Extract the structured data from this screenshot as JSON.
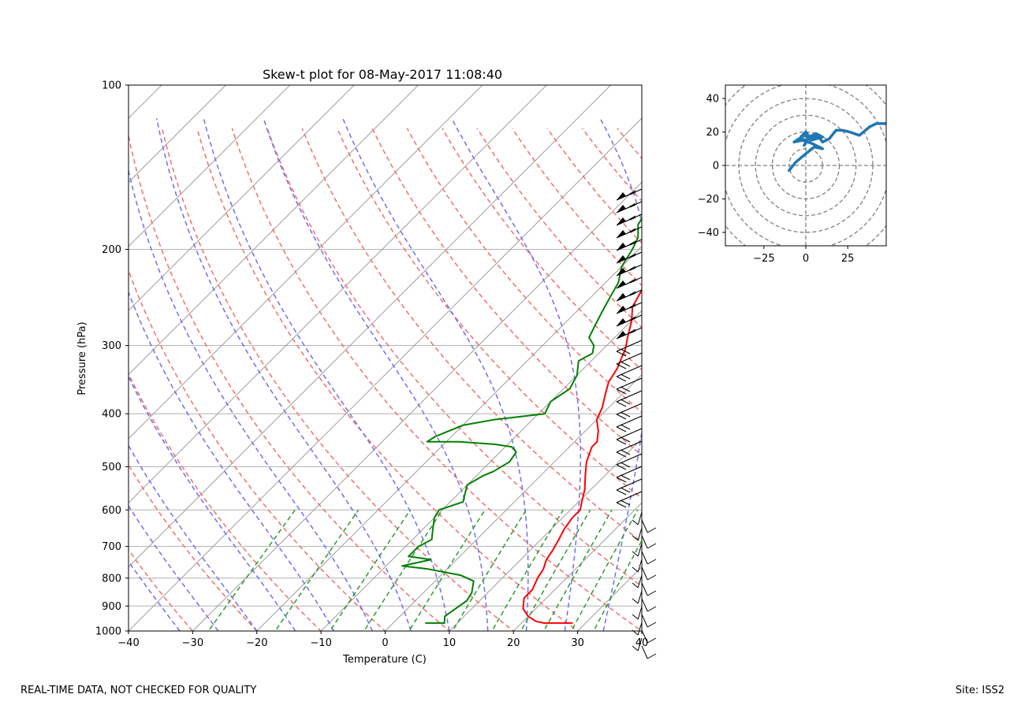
{
  "footer": {
    "left": "REAL-TIME DATA, NOT CHECKED FOR QUALITY",
    "right": "Site: ISS2"
  },
  "chart_data": [
    {
      "type": "line",
      "subtype": "skew-t log-p",
      "title": "Skew-t plot for 08-May-2017 11:08:40",
      "xlabel": "Temperature (C)",
      "ylabel": "Pressure (hPa)",
      "xlim": [
        -40,
        40
      ],
      "ylim": [
        1000,
        100
      ],
      "yscale": "log",
      "xticks": [
        -40,
        -30,
        -20,
        -10,
        0,
        10,
        20,
        30,
        40
      ],
      "yticks": [
        100,
        200,
        300,
        400,
        500,
        600,
        700,
        800,
        900,
        1000
      ],
      "grid": true,
      "reference_lines": {
        "isotherms": {
          "color": "#a0a0a0",
          "style": "solid"
        },
        "dry_adiabats": {
          "color": "#f07070",
          "style": "dashed"
        },
        "moist_adiabats": {
          "color": "#6f6ff0",
          "style": "dashed"
        },
        "mixing_ratio": {
          "color": "#2e9a2e",
          "style": "dashed"
        }
      },
      "series": [
        {
          "role": "temperature",
          "color": "#ff0000",
          "points": [
            [
              28,
              967
            ],
            [
              23.5,
              967
            ],
            [
              22,
              960
            ],
            [
              20,
              940
            ],
            [
              18,
              910
            ],
            [
              16.5,
              870
            ],
            [
              16.5,
              840
            ],
            [
              15.5,
              800
            ],
            [
              15,
              770
            ],
            [
              14,
              740
            ],
            [
              13.5,
              710
            ],
            [
              12.8,
              680
            ],
            [
              12,
              650
            ],
            [
              11.5,
              620
            ],
            [
              11.5,
              600
            ],
            [
              10.5,
              580
            ],
            [
              9,
              550
            ],
            [
              7,
              520
            ],
            [
              5,
              490
            ],
            [
              3.5,
              460
            ],
            [
              3.5,
              450
            ],
            [
              2,
              430
            ],
            [
              0,
              410
            ],
            [
              -1,
              390
            ],
            [
              -2.5,
              370
            ],
            [
              -4,
              350
            ],
            [
              -4.8,
              330
            ],
            [
              -5.5,
              320
            ],
            [
              -6.5,
              305
            ],
            [
              -8,
              290
            ],
            [
              -10,
              270
            ],
            [
              -12,
              255
            ],
            [
              -13,
              240
            ],
            [
              -14,
              225
            ],
            [
              -15,
              210
            ],
            [
              -16,
              200
            ],
            [
              -16,
              190
            ],
            [
              -15,
              175
            ],
            [
              -15,
              165
            ],
            [
              -10.5,
              150
            ],
            [
              -7,
              140
            ],
            [
              -5,
              133
            ],
            [
              -3,
              128
            ],
            [
              -1.5,
              125
            ]
          ]
        },
        {
          "role": "dewpoint",
          "color": "#008000",
          "points": [
            [
              5,
              967
            ],
            [
              8,
              967
            ],
            [
              7,
              940
            ],
            [
              7.5,
              910
            ],
            [
              8,
              880
            ],
            [
              7.5,
              850
            ],
            [
              6,
              810
            ],
            [
              3,
              790
            ],
            [
              -3,
              770
            ],
            [
              -7.5,
              760
            ],
            [
              -4,
              740
            ],
            [
              -8,
              730
            ],
            [
              -8,
              700
            ],
            [
              -7,
              680
            ],
            [
              -8,
              660
            ],
            [
              -9,
              640
            ],
            [
              -10,
              620
            ],
            [
              -10.5,
              600
            ],
            [
              -8,
              580
            ],
            [
              -9,
              560
            ],
            [
              -10,
              540
            ],
            [
              -9,
              520
            ],
            [
              -8,
              510
            ],
            [
              -7,
              490
            ],
            [
              -7.5,
              470
            ],
            [
              -9,
              460
            ],
            [
              -12,
              455
            ],
            [
              -18,
              450
            ],
            [
              -23,
              450
            ],
            [
              -22.5,
              440
            ],
            [
              -20,
              420
            ],
            [
              -16,
              410
            ],
            [
              -9,
              400
            ],
            [
              -10,
              380
            ],
            [
              -9,
              360
            ],
            [
              -10,
              340
            ],
            [
              -12,
              320
            ],
            [
              -11,
              310
            ],
            [
              -12,
              300
            ],
            [
              -14,
              290
            ],
            [
              -15,
              275
            ],
            [
              -16,
              260
            ],
            [
              -17,
              245
            ],
            [
              -18,
              230
            ],
            [
              -20,
              215
            ],
            [
              -21,
              200
            ],
            [
              -22,
              190
            ],
            [
              -24,
              180
            ],
            [
              -25.5,
              160
            ],
            [
              -28,
              145
            ],
            [
              -31,
              135
            ],
            [
              -30.5,
              130
            ],
            [
              -30,
              125
            ]
          ]
        }
      ],
      "wind_barbs": true
    },
    {
      "type": "line",
      "subtype": "hodograph",
      "xlim": [
        -48,
        48
      ],
      "ylim": [
        -48,
        48
      ],
      "xticks": [
        -25,
        0,
        25
      ],
      "yticks": [
        -40,
        -20,
        0,
        20,
        40
      ],
      "rings": [
        10,
        20,
        30,
        40,
        50,
        60,
        70
      ],
      "series": [
        {
          "color": "#1f77b4",
          "points": [
            [
              -10,
              -3
            ],
            [
              -6,
              2
            ],
            [
              0,
              7
            ],
            [
              5,
              11
            ],
            [
              10,
              10
            ],
            [
              4,
              13
            ],
            [
              -2,
              15
            ],
            [
              -7,
              14
            ],
            [
              -4,
              16
            ],
            [
              1,
              15
            ],
            [
              -1,
              12
            ],
            [
              2,
              17
            ],
            [
              6,
              19
            ],
            [
              10,
              17
            ],
            [
              3,
              15
            ],
            [
              0,
              18
            ],
            [
              -3,
              17
            ],
            [
              0,
              20
            ],
            [
              3,
              16
            ],
            [
              7,
              18
            ],
            [
              10,
              14
            ],
            [
              14,
              16
            ],
            [
              18,
              21
            ],
            [
              22,
              21
            ],
            [
              26,
              20
            ],
            [
              32,
              18
            ],
            [
              38,
              23
            ],
            [
              42,
              25
            ],
            [
              48,
              25
            ]
          ]
        }
      ]
    }
  ]
}
